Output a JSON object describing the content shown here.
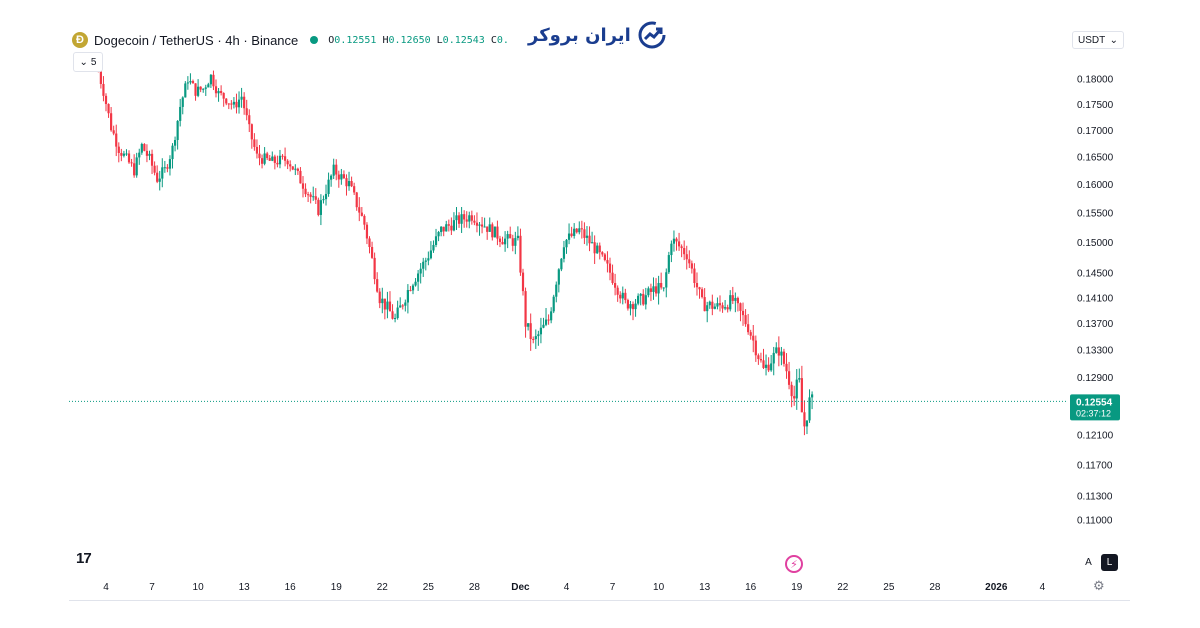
{
  "header": {
    "symbol": "Dogecoin / TetherUS · 4h · Binance",
    "ohlc": [
      {
        "key": "O",
        "value": "0.12551"
      },
      {
        "key": "H",
        "value": "0.12650"
      },
      {
        "key": "L",
        "value": "0.12543"
      },
      {
        "key": "C",
        "value": "0."
      }
    ],
    "indicator_count": "5",
    "coin_glyph": "Ð"
  },
  "brand": {
    "logo_text": "ایران بروکر",
    "color": "#1a3d8f"
  },
  "toolbar": {
    "currency": "USDT",
    "auto_label": "A",
    "log_label": "L",
    "tv_logo": "17"
  },
  "colors": {
    "up": "#089981",
    "down": "#f23645",
    "grid": "#f0f3fa",
    "price_line": "#089981"
  },
  "chart_data": {
    "type": "candlestick",
    "title": "Dogecoin / TetherUS",
    "interval": "4h",
    "exchange": "Binance",
    "yaxis_ticks": [
      "0.18000",
      "0.17500",
      "0.17000",
      "0.16500",
      "0.16000",
      "0.15500",
      "0.15000",
      "0.14500",
      "0.14100",
      "0.13700",
      "0.13300",
      "0.12900",
      "0.12100",
      "0.11700",
      "0.11300",
      "0.11000"
    ],
    "ylim": [
      0.1085,
      0.1842
    ],
    "xaxis_ticks": [
      "4",
      "7",
      "10",
      "13",
      "16",
      "19",
      "22",
      "25",
      "28",
      "Dec",
      "4",
      "7",
      "10",
      "13",
      "16",
      "19",
      "22",
      "25",
      "28",
      "2026",
      "4"
    ],
    "xaxis_tick_days": [
      0,
      3,
      6,
      9,
      12,
      15,
      18,
      21,
      24,
      27,
      30,
      33,
      36,
      39,
      42,
      45,
      48,
      51,
      54,
      58,
      61
    ],
    "last_price": "0.12554",
    "countdown": "02:37:12",
    "price_path": [
      {
        "day": -0.5,
        "price": 0.1835
      },
      {
        "day": 0,
        "price": 0.1775
      },
      {
        "day": 0.5,
        "price": 0.1705
      },
      {
        "day": 1,
        "price": 0.1665
      },
      {
        "day": 1.5,
        "price": 0.1645
      },
      {
        "day": 2,
        "price": 0.1625
      },
      {
        "day": 2.5,
        "price": 0.167
      },
      {
        "day": 3,
        "price": 0.1645
      },
      {
        "day": 3.5,
        "price": 0.161
      },
      {
        "day": 4,
        "price": 0.1625
      },
      {
        "day": 4.5,
        "price": 0.1665
      },
      {
        "day": 5,
        "price": 0.1745
      },
      {
        "day": 5.5,
        "price": 0.18
      },
      {
        "day": 6,
        "price": 0.1775
      },
      {
        "day": 6.5,
        "price": 0.178
      },
      {
        "day": 7,
        "price": 0.1805
      },
      {
        "day": 7.5,
        "price": 0.177
      },
      {
        "day": 8,
        "price": 0.176
      },
      {
        "day": 8.5,
        "price": 0.1745
      },
      {
        "day": 9,
        "price": 0.1765
      },
      {
        "day": 9.5,
        "price": 0.17
      },
      {
        "day": 10,
        "price": 0.165
      },
      {
        "day": 11,
        "price": 0.164
      },
      {
        "day": 12,
        "price": 0.1645
      },
      {
        "day": 13,
        "price": 0.16
      },
      {
        "day": 14,
        "price": 0.1555
      },
      {
        "day": 15,
        "price": 0.1625
      },
      {
        "day": 16,
        "price": 0.16
      },
      {
        "day": 17,
        "price": 0.153
      },
      {
        "day": 18,
        "price": 0.141
      },
      {
        "day": 19,
        "price": 0.1375
      },
      {
        "day": 20,
        "price": 0.143
      },
      {
        "day": 21,
        "price": 0.147
      },
      {
        "day": 22,
        "price": 0.152
      },
      {
        "day": 23,
        "price": 0.1535
      },
      {
        "day": 24,
        "price": 0.1545
      },
      {
        "day": 25,
        "price": 0.1525
      },
      {
        "day": 26,
        "price": 0.1505
      },
      {
        "day": 27,
        "price": 0.15
      },
      {
        "day": 27.5,
        "price": 0.137
      },
      {
        "day": 28,
        "price": 0.134
      },
      {
        "day": 29,
        "price": 0.1375
      },
      {
        "day": 30,
        "price": 0.15
      },
      {
        "day": 31,
        "price": 0.152
      },
      {
        "day": 32,
        "price": 0.149
      },
      {
        "day": 33,
        "price": 0.145
      },
      {
        "day": 34,
        "price": 0.14
      },
      {
        "day": 35,
        "price": 0.1405
      },
      {
        "day": 36,
        "price": 0.1425
      },
      {
        "day": 36.5,
        "price": 0.142
      },
      {
        "day": 37,
        "price": 0.1505
      },
      {
        "day": 38,
        "price": 0.148
      },
      {
        "day": 39,
        "price": 0.14
      },
      {
        "day": 40,
        "price": 0.1395
      },
      {
        "day": 41,
        "price": 0.1405
      },
      {
        "day": 42,
        "price": 0.1365
      },
      {
        "day": 43,
        "price": 0.13
      },
      {
        "day": 44,
        "price": 0.133
      },
      {
        "day": 44.5,
        "price": 0.13
      },
      {
        "day": 45,
        "price": 0.126
      },
      {
        "day": 45.3,
        "price": 0.129
      },
      {
        "day": 45.6,
        "price": 0.1215
      },
      {
        "day": 46,
        "price": 0.1255
      }
    ]
  }
}
